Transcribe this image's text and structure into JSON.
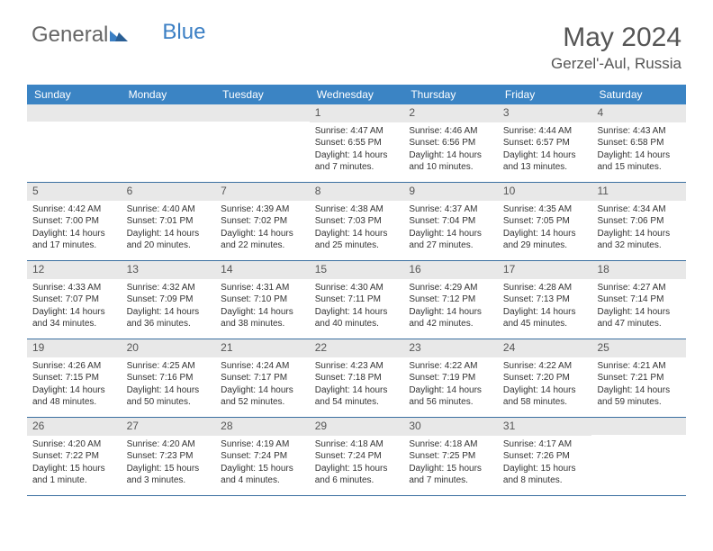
{
  "brand": {
    "part1": "General",
    "part2": "Blue"
  },
  "title": "May 2024",
  "location": "Gerzel'-Aul, Russia",
  "colors": {
    "header_bg": "#3b84c4",
    "header_text": "#ffffff",
    "daynum_bg": "#e8e8e8",
    "daynum_text": "#555555",
    "body_text": "#333333",
    "rule": "#3b6fa0",
    "logo_gray": "#666666",
    "logo_blue": "#3b7fc4",
    "page_bg": "#ffffff"
  },
  "weekdays": [
    "Sunday",
    "Monday",
    "Tuesday",
    "Wednesday",
    "Thursday",
    "Friday",
    "Saturday"
  ],
  "weeks": [
    [
      {
        "n": "",
        "sr": "",
        "ss": "",
        "dl": ""
      },
      {
        "n": "",
        "sr": "",
        "ss": "",
        "dl": ""
      },
      {
        "n": "",
        "sr": "",
        "ss": "",
        "dl": ""
      },
      {
        "n": "1",
        "sr": "Sunrise: 4:47 AM",
        "ss": "Sunset: 6:55 PM",
        "dl": "Daylight: 14 hours and 7 minutes."
      },
      {
        "n": "2",
        "sr": "Sunrise: 4:46 AM",
        "ss": "Sunset: 6:56 PM",
        "dl": "Daylight: 14 hours and 10 minutes."
      },
      {
        "n": "3",
        "sr": "Sunrise: 4:44 AM",
        "ss": "Sunset: 6:57 PM",
        "dl": "Daylight: 14 hours and 13 minutes."
      },
      {
        "n": "4",
        "sr": "Sunrise: 4:43 AM",
        "ss": "Sunset: 6:58 PM",
        "dl": "Daylight: 14 hours and 15 minutes."
      }
    ],
    [
      {
        "n": "5",
        "sr": "Sunrise: 4:42 AM",
        "ss": "Sunset: 7:00 PM",
        "dl": "Daylight: 14 hours and 17 minutes."
      },
      {
        "n": "6",
        "sr": "Sunrise: 4:40 AM",
        "ss": "Sunset: 7:01 PM",
        "dl": "Daylight: 14 hours and 20 minutes."
      },
      {
        "n": "7",
        "sr": "Sunrise: 4:39 AM",
        "ss": "Sunset: 7:02 PM",
        "dl": "Daylight: 14 hours and 22 minutes."
      },
      {
        "n": "8",
        "sr": "Sunrise: 4:38 AM",
        "ss": "Sunset: 7:03 PM",
        "dl": "Daylight: 14 hours and 25 minutes."
      },
      {
        "n": "9",
        "sr": "Sunrise: 4:37 AM",
        "ss": "Sunset: 7:04 PM",
        "dl": "Daylight: 14 hours and 27 minutes."
      },
      {
        "n": "10",
        "sr": "Sunrise: 4:35 AM",
        "ss": "Sunset: 7:05 PM",
        "dl": "Daylight: 14 hours and 29 minutes."
      },
      {
        "n": "11",
        "sr": "Sunrise: 4:34 AM",
        "ss": "Sunset: 7:06 PM",
        "dl": "Daylight: 14 hours and 32 minutes."
      }
    ],
    [
      {
        "n": "12",
        "sr": "Sunrise: 4:33 AM",
        "ss": "Sunset: 7:07 PM",
        "dl": "Daylight: 14 hours and 34 minutes."
      },
      {
        "n": "13",
        "sr": "Sunrise: 4:32 AM",
        "ss": "Sunset: 7:09 PM",
        "dl": "Daylight: 14 hours and 36 minutes."
      },
      {
        "n": "14",
        "sr": "Sunrise: 4:31 AM",
        "ss": "Sunset: 7:10 PM",
        "dl": "Daylight: 14 hours and 38 minutes."
      },
      {
        "n": "15",
        "sr": "Sunrise: 4:30 AM",
        "ss": "Sunset: 7:11 PM",
        "dl": "Daylight: 14 hours and 40 minutes."
      },
      {
        "n": "16",
        "sr": "Sunrise: 4:29 AM",
        "ss": "Sunset: 7:12 PM",
        "dl": "Daylight: 14 hours and 42 minutes."
      },
      {
        "n": "17",
        "sr": "Sunrise: 4:28 AM",
        "ss": "Sunset: 7:13 PM",
        "dl": "Daylight: 14 hours and 45 minutes."
      },
      {
        "n": "18",
        "sr": "Sunrise: 4:27 AM",
        "ss": "Sunset: 7:14 PM",
        "dl": "Daylight: 14 hours and 47 minutes."
      }
    ],
    [
      {
        "n": "19",
        "sr": "Sunrise: 4:26 AM",
        "ss": "Sunset: 7:15 PM",
        "dl": "Daylight: 14 hours and 48 minutes."
      },
      {
        "n": "20",
        "sr": "Sunrise: 4:25 AM",
        "ss": "Sunset: 7:16 PM",
        "dl": "Daylight: 14 hours and 50 minutes."
      },
      {
        "n": "21",
        "sr": "Sunrise: 4:24 AM",
        "ss": "Sunset: 7:17 PM",
        "dl": "Daylight: 14 hours and 52 minutes."
      },
      {
        "n": "22",
        "sr": "Sunrise: 4:23 AM",
        "ss": "Sunset: 7:18 PM",
        "dl": "Daylight: 14 hours and 54 minutes."
      },
      {
        "n": "23",
        "sr": "Sunrise: 4:22 AM",
        "ss": "Sunset: 7:19 PM",
        "dl": "Daylight: 14 hours and 56 minutes."
      },
      {
        "n": "24",
        "sr": "Sunrise: 4:22 AM",
        "ss": "Sunset: 7:20 PM",
        "dl": "Daylight: 14 hours and 58 minutes."
      },
      {
        "n": "25",
        "sr": "Sunrise: 4:21 AM",
        "ss": "Sunset: 7:21 PM",
        "dl": "Daylight: 14 hours and 59 minutes."
      }
    ],
    [
      {
        "n": "26",
        "sr": "Sunrise: 4:20 AM",
        "ss": "Sunset: 7:22 PM",
        "dl": "Daylight: 15 hours and 1 minute."
      },
      {
        "n": "27",
        "sr": "Sunrise: 4:20 AM",
        "ss": "Sunset: 7:23 PM",
        "dl": "Daylight: 15 hours and 3 minutes."
      },
      {
        "n": "28",
        "sr": "Sunrise: 4:19 AM",
        "ss": "Sunset: 7:24 PM",
        "dl": "Daylight: 15 hours and 4 minutes."
      },
      {
        "n": "29",
        "sr": "Sunrise: 4:18 AM",
        "ss": "Sunset: 7:24 PM",
        "dl": "Daylight: 15 hours and 6 minutes."
      },
      {
        "n": "30",
        "sr": "Sunrise: 4:18 AM",
        "ss": "Sunset: 7:25 PM",
        "dl": "Daylight: 15 hours and 7 minutes."
      },
      {
        "n": "31",
        "sr": "Sunrise: 4:17 AM",
        "ss": "Sunset: 7:26 PM",
        "dl": "Daylight: 15 hours and 8 minutes."
      },
      {
        "n": "",
        "sr": "",
        "ss": "",
        "dl": ""
      }
    ]
  ]
}
